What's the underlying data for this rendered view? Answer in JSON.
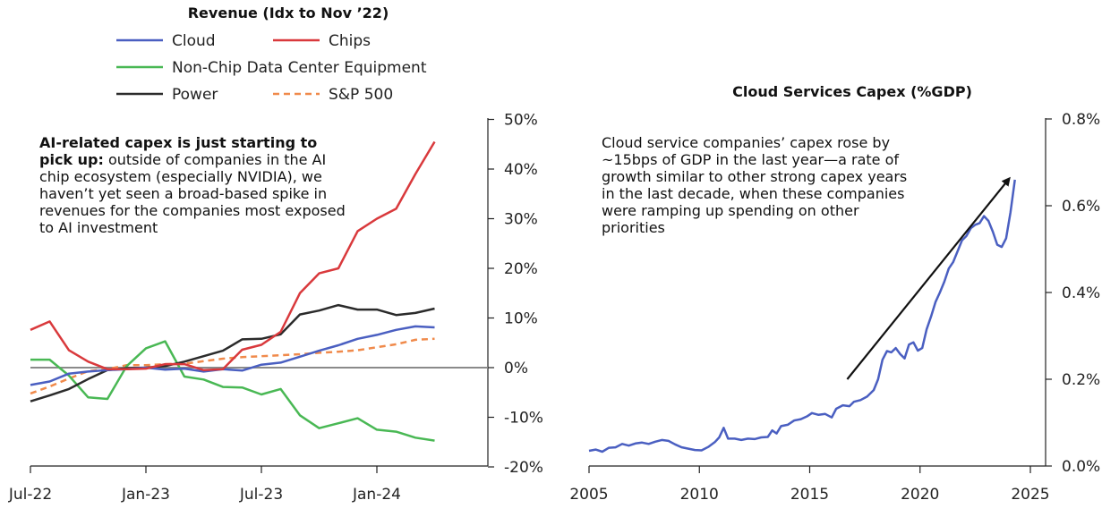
{
  "chart_data": [
    {
      "type": "line",
      "title": "Revenue (Idx to Nov ’22)",
      "x_tick_labels": [
        "Jul-22",
        "Jan-23",
        "Jul-23",
        "Jan-24"
      ],
      "y_tick_labels": [
        "50%",
        "40%",
        "30%",
        "20%",
        "10%",
        "0%",
        "-10%",
        "-20%"
      ],
      "ylim": [
        -20,
        50
      ],
      "y_unit": "%",
      "y_axis_side": "right",
      "grid": false,
      "legend_position": "top",
      "annotation": {
        "bold": "AI-related capex is just starting to pick up:",
        "text": " outside of companies in the AI chip ecosystem (especially NVIDIA), we haven’t yet seen a broad-based spike in revenues for the companies most exposed to AI investment"
      },
      "x": [
        "2022-07",
        "2022-08",
        "2022-09",
        "2022-10",
        "2022-11",
        "2022-12",
        "2023-01",
        "2023-02",
        "2023-03",
        "2023-04",
        "2023-05",
        "2023-06",
        "2023-07",
        "2023-08",
        "2023-09",
        "2023-10",
        "2023-11",
        "2023-12",
        "2024-01",
        "2024-02",
        "2024-03",
        "2024-04",
        "2024-05"
      ],
      "series": [
        {
          "name": "Cloud",
          "color": "#4a5fc1",
          "style": "solid",
          "values": [
            -3.5,
            -2.8,
            -1.2,
            -0.8,
            -0.5,
            -0.3,
            0,
            -0.4,
            -0.2,
            -0.8,
            -0.3,
            -0.6,
            0.6,
            1.0,
            2.2,
            3.4,
            4.5,
            5.8,
            6.6,
            7.6,
            8.3,
            8.1,
            null
          ]
        },
        {
          "name": "Chips",
          "color": "#d9393c",
          "style": "solid",
          "values": [
            7.6,
            9.3,
            3.5,
            1.2,
            -0.3,
            -0.3,
            -0.2,
            0.7,
            0.7,
            -0.5,
            -0.3,
            3.6,
            4.6,
            7.2,
            15.0,
            19.0,
            20.0,
            27.5,
            30.0,
            32.0,
            39.0,
            45.5,
            null
          ]
        },
        {
          "name": "Non-Chip Data Center Equipment",
          "color": "#49b854",
          "style": "solid",
          "values": [
            1.6,
            1.6,
            -1.6,
            -6.0,
            -6.3,
            0.3,
            3.9,
            5.3,
            -1.8,
            -2.4,
            -3.9,
            -4.0,
            -5.4,
            -4.3,
            -9.6,
            -12.2,
            -11.2,
            -10.2,
            -12.5,
            -12.9,
            -14.1,
            -14.7,
            null
          ]
        },
        {
          "name": "Power",
          "color": "#2b2b2b",
          "style": "solid",
          "values": [
            -6.8,
            -5.6,
            -4.3,
            -2.3,
            -0.5,
            -0.1,
            0,
            0.3,
            1.2,
            2.3,
            3.4,
            5.7,
            5.8,
            6.7,
            10.7,
            11.5,
            12.6,
            11.7,
            11.7,
            10.6,
            11.0,
            11.9,
            null
          ]
        },
        {
          "name": "S&P 500",
          "color": "#f08a4b",
          "style": "dashed",
          "values": [
            -5.2,
            -3.8,
            -2.2,
            -0.7,
            -0.3,
            0.5,
            0.5,
            0.7,
            0.8,
            1.3,
            1.8,
            2.1,
            2.3,
            2.5,
            2.7,
            3.0,
            3.2,
            3.5,
            4.1,
            4.7,
            5.6,
            5.8,
            null
          ]
        }
      ],
      "zero_line": true
    },
    {
      "type": "line",
      "title": "Cloud Services Capex (%GDP)",
      "x_tick_labels": [
        "2005",
        "2010",
        "2015",
        "2020",
        "2025"
      ],
      "y_tick_labels": [
        "0.8%",
        "0.6%",
        "0.4%",
        "0.2%",
        "0.0%"
      ],
      "xlim": [
        2005,
        2025
      ],
      "ylim": [
        0,
        0.8
      ],
      "y_unit": "%",
      "y_axis_side": "right",
      "grid": false,
      "annotation": {
        "text": "Cloud service companies’ capex rose by ~15bps of GDP in the last year—a rate of growth similar to other strong capex years in the last decade, when these companies were ramping up spending on other priorities"
      },
      "trend_arrow": {
        "from": [
          2016.7,
          0.2
        ],
        "to": [
          2024.0,
          0.66
        ]
      },
      "series": [
        {
          "color": "#4a5fc1",
          "points": [
            [
              2005.0,
              0.035
            ],
            [
              2005.3,
              0.038
            ],
            [
              2005.6,
              0.033
            ],
            [
              2005.9,
              0.042
            ],
            [
              2006.2,
              0.043
            ],
            [
              2006.5,
              0.051
            ],
            [
              2006.8,
              0.047
            ],
            [
              2007.1,
              0.052
            ],
            [
              2007.4,
              0.054
            ],
            [
              2007.7,
              0.051
            ],
            [
              2008.0,
              0.056
            ],
            [
              2008.3,
              0.06
            ],
            [
              2008.6,
              0.058
            ],
            [
              2008.9,
              0.05
            ],
            [
              2009.2,
              0.043
            ],
            [
              2009.5,
              0.04
            ],
            [
              2009.8,
              0.037
            ],
            [
              2010.1,
              0.036
            ],
            [
              2010.4,
              0.044
            ],
            [
              2010.7,
              0.055
            ],
            [
              2010.9,
              0.066
            ],
            [
              2011.1,
              0.088
            ],
            [
              2011.3,
              0.063
            ],
            [
              2011.6,
              0.063
            ],
            [
              2011.9,
              0.06
            ],
            [
              2012.2,
              0.063
            ],
            [
              2012.5,
              0.062
            ],
            [
              2012.8,
              0.066
            ],
            [
              2013.1,
              0.067
            ],
            [
              2013.3,
              0.082
            ],
            [
              2013.5,
              0.075
            ],
            [
              2013.7,
              0.092
            ],
            [
              2014.0,
              0.095
            ],
            [
              2014.3,
              0.105
            ],
            [
              2014.6,
              0.108
            ],
            [
              2014.9,
              0.115
            ],
            [
              2015.1,
              0.122
            ],
            [
              2015.4,
              0.118
            ],
            [
              2015.7,
              0.12
            ],
            [
              2016.0,
              0.112
            ],
            [
              2016.2,
              0.132
            ],
            [
              2016.5,
              0.14
            ],
            [
              2016.8,
              0.138
            ],
            [
              2017.0,
              0.148
            ],
            [
              2017.3,
              0.152
            ],
            [
              2017.6,
              0.16
            ],
            [
              2017.9,
              0.175
            ],
            [
              2018.1,
              0.2
            ],
            [
              2018.3,
              0.245
            ],
            [
              2018.5,
              0.265
            ],
            [
              2018.7,
              0.262
            ],
            [
              2018.9,
              0.272
            ],
            [
              2019.1,
              0.258
            ],
            [
              2019.3,
              0.248
            ],
            [
              2019.5,
              0.28
            ],
            [
              2019.7,
              0.285
            ],
            [
              2019.9,
              0.266
            ],
            [
              2020.1,
              0.272
            ],
            [
              2020.3,
              0.315
            ],
            [
              2020.5,
              0.345
            ],
            [
              2020.7,
              0.378
            ],
            [
              2020.9,
              0.4
            ],
            [
              2021.1,
              0.425
            ],
            [
              2021.3,
              0.455
            ],
            [
              2021.5,
              0.47
            ],
            [
              2021.7,
              0.495
            ],
            [
              2021.9,
              0.52
            ],
            [
              2022.1,
              0.53
            ],
            [
              2022.3,
              0.548
            ],
            [
              2022.5,
              0.556
            ],
            [
              2022.7,
              0.56
            ],
            [
              2022.9,
              0.576
            ],
            [
              2023.1,
              0.565
            ],
            [
              2023.3,
              0.54
            ],
            [
              2023.5,
              0.51
            ],
            [
              2023.7,
              0.505
            ],
            [
              2023.9,
              0.525
            ],
            [
              2024.1,
              0.585
            ],
            [
              2024.3,
              0.66
            ]
          ]
        }
      ]
    }
  ]
}
